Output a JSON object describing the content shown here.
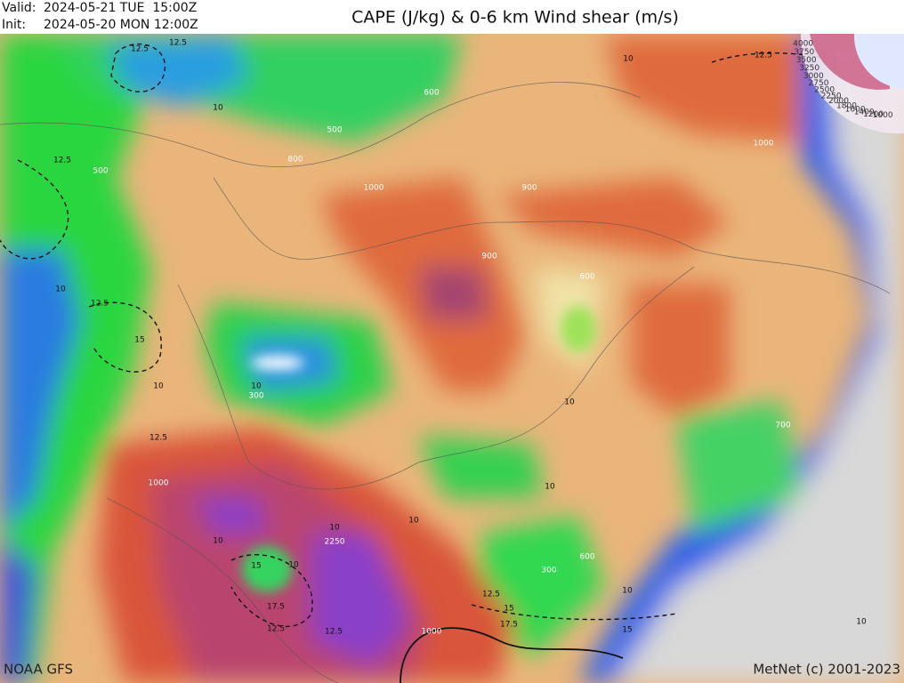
{
  "header": {
    "valid_label": "Valid:",
    "valid_time": "2024-05-21 TUE  15:00Z",
    "init_label": "Init:",
    "init_time": "2024-05-20 MON 12:00Z",
    "title": "CAPE (J/kg) & 0-6 km Wind shear (m/s)"
  },
  "footer": {
    "model": "NOAA GFS",
    "credit": "MetNet (c) 2001-2023"
  },
  "legend": {
    "labels": [
      "4000",
      "3750",
      "3500",
      "3250",
      "3000",
      "2750",
      "2500",
      "2250",
      "2000",
      "1800",
      "1600",
      "1400",
      "1200",
      "1000"
    ]
  },
  "map": {
    "contour_labels": [
      "12.5",
      "12.5",
      "10",
      "10",
      "12.5",
      "600",
      "500",
      "800",
      "1000",
      "900",
      "1000",
      "500",
      "12.5",
      "900",
      "600",
      "10",
      "12.5",
      "15",
      "10",
      "300",
      "10",
      "10",
      "700",
      "12.5",
      "1000",
      "10",
      "2250",
      "10",
      "10",
      "15",
      "10",
      "10",
      "300",
      "600",
      "12.5",
      "15",
      "17.5",
      "1000",
      "12.5",
      "12.5",
      "15",
      "10",
      "10",
      "17.5"
    ]
  }
}
